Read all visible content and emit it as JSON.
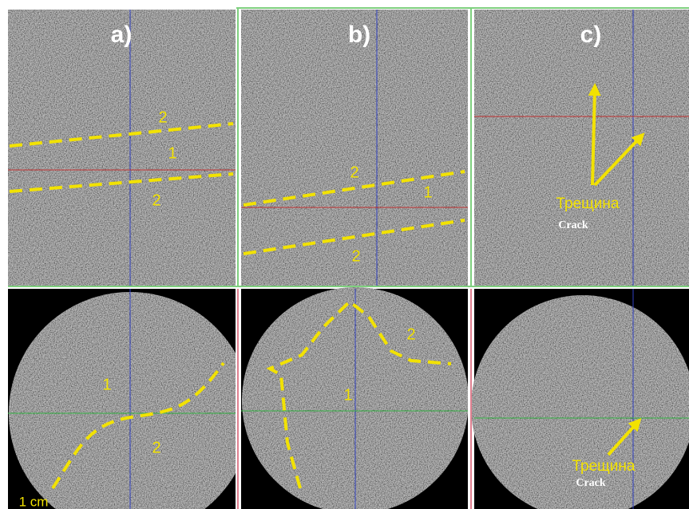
{
  "panels": [
    {
      "label": "a)",
      "top": {
        "labels": [
          "2",
          "1",
          "2"
        ]
      },
      "bottom": {
        "labels": [
          "1",
          "2"
        ],
        "scale": "1 cm"
      }
    },
    {
      "label": "b)",
      "top": {
        "labels": [
          "2",
          "1",
          "2"
        ]
      },
      "bottom": {
        "labels": [
          "2",
          "1"
        ]
      }
    },
    {
      "label": "c)",
      "top": {
        "annotation": "Трещина",
        "annotation_en": "Crack"
      },
      "bottom": {
        "annotation": "Трещина",
        "annotation_en": "Crack"
      }
    }
  ]
}
